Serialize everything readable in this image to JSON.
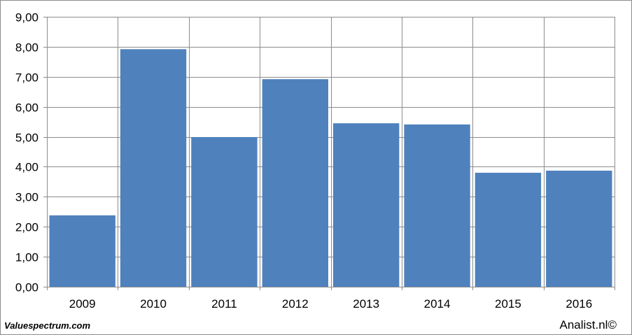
{
  "footer": {
    "source_left": "Valuespectrum.com",
    "source_right": "Analist.nl©"
  },
  "colors": {
    "bar": "#4f81bd",
    "grid": "#8c8c8c",
    "axis": "#8c8c8c"
  },
  "chart_data": {
    "type": "bar",
    "categories": [
      "2009",
      "2010",
      "2011",
      "2012",
      "2013",
      "2014",
      "2015",
      "2016"
    ],
    "values": [
      2.38,
      7.92,
      4.99,
      6.92,
      5.45,
      5.41,
      3.8,
      3.87
    ],
    "yticks": [
      "0,00",
      "1,00",
      "2,00",
      "3,00",
      "4,00",
      "5,00",
      "6,00",
      "7,00",
      "8,00",
      "9,00"
    ],
    "ylim": [
      0,
      9
    ],
    "grid": true,
    "legend": "none",
    "title": "",
    "xlabel": "",
    "ylabel": ""
  }
}
